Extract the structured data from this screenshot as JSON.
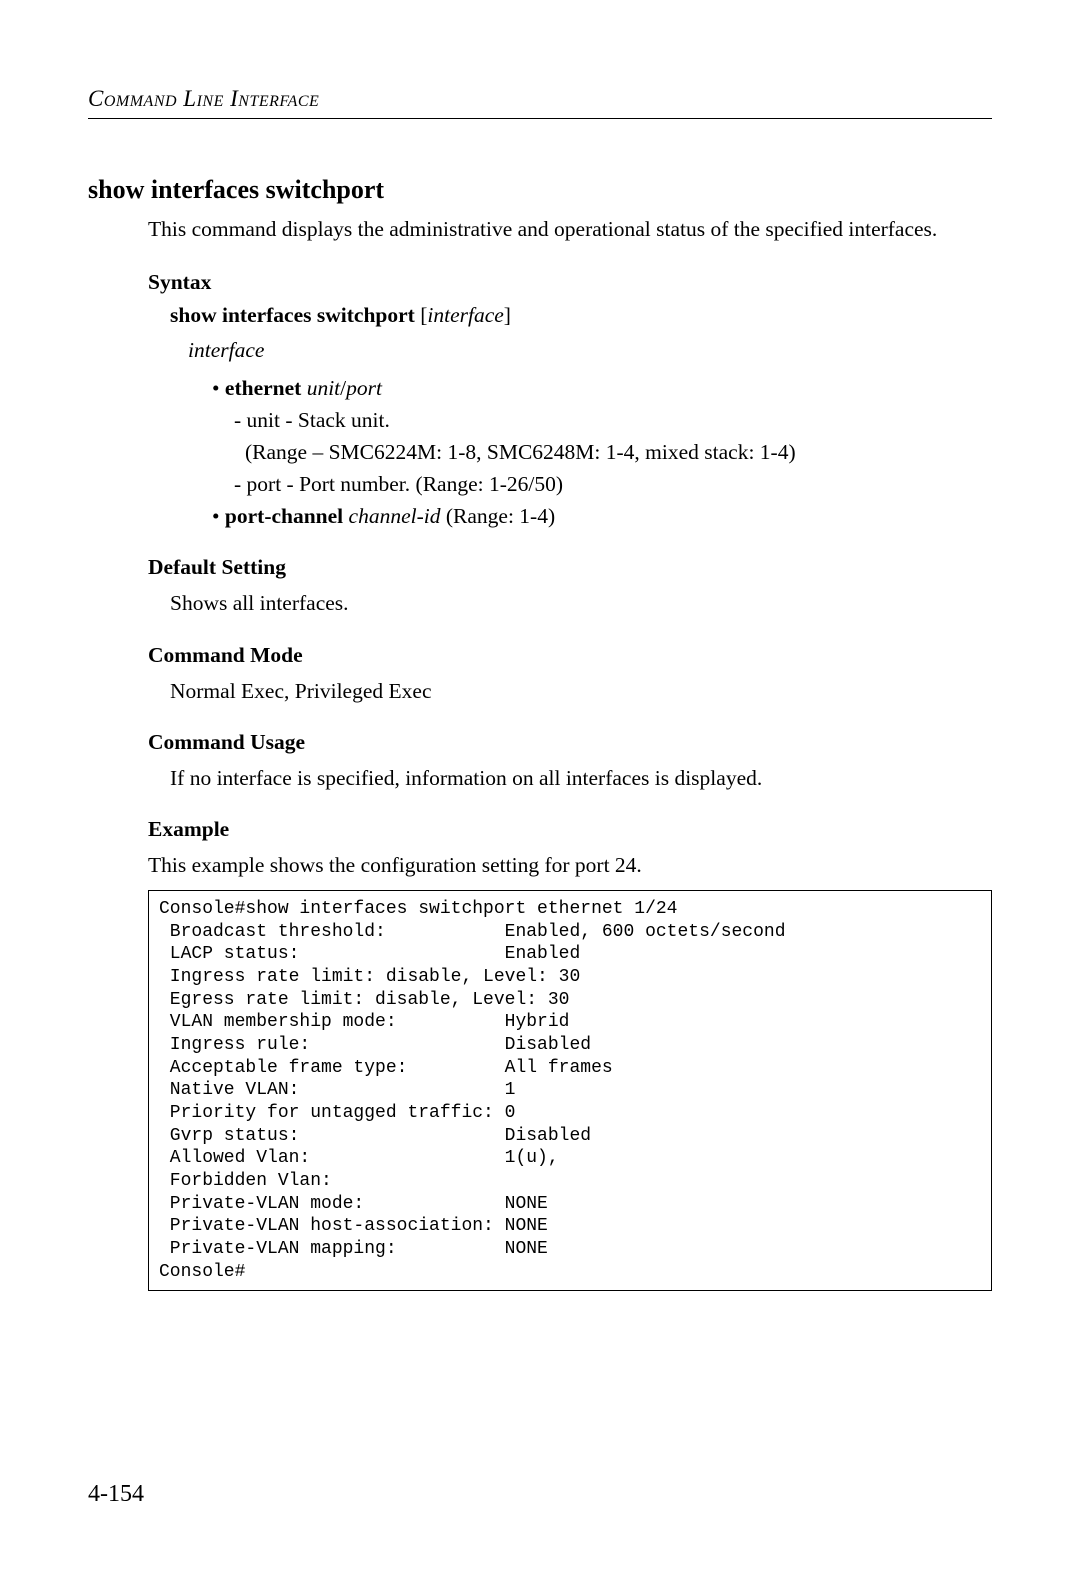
{
  "header": {
    "title": "Command Line Interface"
  },
  "command": {
    "title": "show interfaces switchport",
    "description": "This command displays the administrative and operational status of the specified interfaces."
  },
  "syntax": {
    "heading": "Syntax",
    "command_bold": "show interfaces switchport",
    "command_param": "interface",
    "interface_label": "interface",
    "ethernet": {
      "bullet_bold": "ethernet",
      "bullet_italic": "unit",
      "bullet_slash": "/",
      "bullet_italic2": "port",
      "unit_line": "- unit - Stack unit.",
      "unit_range": "(Range – SMC6224M: 1-8, SMC6248M: 1-4, mixed stack: 1-4)",
      "port_line": "- port - Port number. (Range: 1-26/50)"
    },
    "portchannel": {
      "bullet_bold": "port-channel",
      "bullet_italic": "channel-id",
      "bullet_rest": " (Range: 1-4)"
    }
  },
  "default_setting": {
    "heading": "Default Setting",
    "text": "Shows all interfaces."
  },
  "command_mode": {
    "heading": "Command Mode",
    "text": "Normal Exec, Privileged Exec"
  },
  "command_usage": {
    "heading": "Command Usage",
    "text": "If no interface is specified, information on all interfaces is displayed."
  },
  "example": {
    "heading": "Example",
    "intro": "This example shows the configuration setting for port 24.",
    "console": "Console#show interfaces switchport ethernet 1/24\n Broadcast threshold:           Enabled, 600 octets/second\n LACP status:                   Enabled\n Ingress rate limit: disable, Level: 30\n Egress rate limit: disable, Level: 30\n VLAN membership mode:          Hybrid\n Ingress rule:                  Disabled\n Acceptable frame type:         All frames\n Native VLAN:                   1\n Priority for untagged traffic: 0\n Gvrp status:                   Disabled\n Allowed Vlan:                  1(u),\n Forbidden Vlan:\n Private-VLAN mode:             NONE\n Private-VLAN host-association: NONE\n Private-VLAN mapping:          NONE\nConsole#"
  },
  "page_number": "4-154",
  "colors": {
    "text": "#000000",
    "background": "#ffffff",
    "rule": "#000000",
    "border": "#000000"
  },
  "typography": {
    "body_font": "Georgia, Times New Roman, serif",
    "mono_font": "Courier New, Courier, monospace",
    "body_size_pt": 16,
    "mono_size_pt": 13.5,
    "title_size_pt": 19.5
  }
}
